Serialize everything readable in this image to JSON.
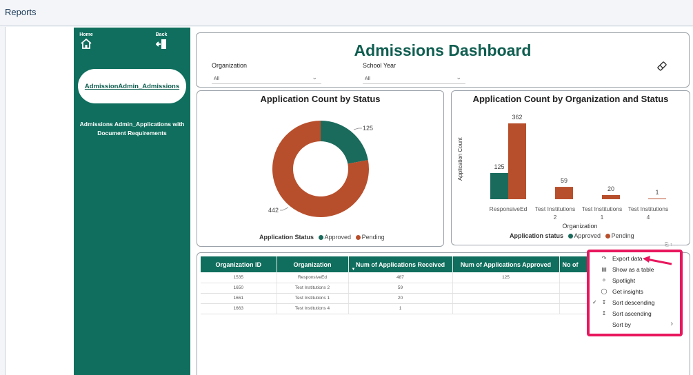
{
  "app": {
    "title": "Reports"
  },
  "sidebar": {
    "home_label": "Home",
    "back_label": "Back",
    "active_item": "AdmissionAdmin_Admissions",
    "second_item": "Admissions Admin_Applications with Document Requirements"
  },
  "dashboard": {
    "title": "Admissions Dashboard",
    "filters": [
      {
        "label": "Organization",
        "value": "All"
      },
      {
        "label": "School Year",
        "value": "All"
      }
    ]
  },
  "donut": {
    "title": "Application Count by Status",
    "label_approved": "125",
    "label_pending": "442",
    "legend_title": "Application Status",
    "legend_approved": "Approved",
    "legend_pending": "Pending"
  },
  "bar": {
    "title": "Application Count by Organization and Status",
    "ylabel": "Application Count",
    "xlabel": "Organization",
    "legend_title": "Application status",
    "legend_approved": "Approved",
    "legend_pending": "Pending"
  },
  "chart_data": [
    {
      "type": "pie",
      "title": "Application Count by Status",
      "categories": [
        "Approved",
        "Pending"
      ],
      "values": [
        125,
        442
      ],
      "colors": [
        "#1a6b5c",
        "#b84f2c"
      ],
      "legend_title": "Application Status"
    },
    {
      "type": "bar",
      "title": "Application Count by Organization and Status",
      "xlabel": "Organization",
      "ylabel": "Application Count",
      "categories": [
        "ResponsiveEd",
        "Test Institutions 2",
        "Test Institutions 1",
        "Test Institutions 4"
      ],
      "series": [
        {
          "name": "Approved",
          "values": [
            125,
            null,
            null,
            null
          ],
          "color": "#1a6b5c"
        },
        {
          "name": "Pending",
          "values": [
            362,
            59,
            20,
            1
          ],
          "color": "#b84f2c"
        }
      ],
      "ylim": [
        0,
        362
      ],
      "legend_title": "Application status"
    }
  ],
  "table": {
    "headers": [
      "Organization ID",
      "Organization",
      "Num of Applications Received",
      "Num of Applications Approved",
      "No of"
    ],
    "rows": [
      [
        "1535",
        "ResponsiveEd",
        "487",
        "125"
      ],
      [
        "1650",
        "Test Institutions 2",
        "59",
        ""
      ],
      [
        "1661",
        "Test Institutions 1",
        "20",
        ""
      ],
      [
        "1663",
        "Test Institutions 4",
        "1",
        ""
      ]
    ]
  },
  "context_menu": {
    "items": [
      {
        "label": "Export data",
        "icon": "export-icon"
      },
      {
        "label": "Show as a table",
        "icon": "table-icon"
      },
      {
        "label": "Spotlight",
        "icon": "spotlight-icon"
      },
      {
        "label": "Get insights",
        "icon": "lightbulb-icon"
      },
      {
        "label": "Sort descending",
        "icon": "sort-descending-icon",
        "checked": true
      },
      {
        "label": "Sort ascending",
        "icon": "sort-ascending-icon"
      },
      {
        "label": "Sort by",
        "icon": "",
        "submenu": true
      }
    ],
    "highlight_color": "#e8175d"
  }
}
